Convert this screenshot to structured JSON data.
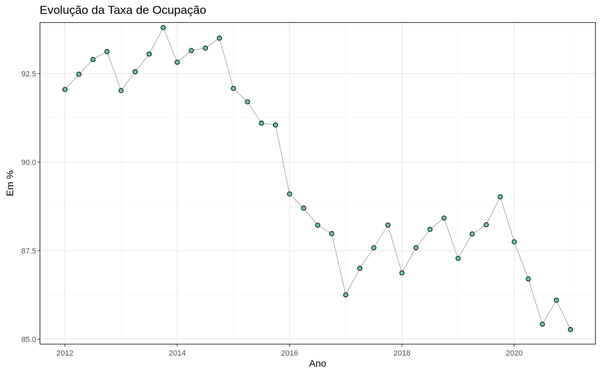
{
  "chart_data": {
    "type": "scatter",
    "title": "Evolução da Taxa de Ocupação",
    "xlabel": "Ano",
    "ylabel": "Em %",
    "xlim": [
      2011.55,
      2021.45
    ],
    "ylim": [
      84.85,
      93.95
    ],
    "x_ticks": [
      2012,
      2014,
      2016,
      2018,
      2020
    ],
    "x_tick_labels": [
      "2012",
      "2014",
      "2016",
      "2018",
      "2020"
    ],
    "y_ticks": [
      85.0,
      87.5,
      90.0,
      92.5
    ],
    "y_tick_labels": [
      "85.0",
      "87.5",
      "90.0",
      "92.5"
    ],
    "grid": true,
    "line_color": "#999999",
    "point_fill": "#66c2a5",
    "point_stroke": "#000000",
    "series": [
      {
        "x": [
          2012.0,
          2012.25,
          2012.5,
          2012.75,
          2013.0,
          2013.25,
          2013.5,
          2013.75,
          2014.0,
          2014.25,
          2014.5,
          2014.75,
          2015.0,
          2015.25,
          2015.5,
          2015.75,
          2016.0,
          2016.25,
          2016.5,
          2016.75,
          2017.0,
          2017.25,
          2017.5,
          2017.75,
          2018.0,
          2018.25,
          2018.5,
          2018.75,
          2019.0,
          2019.25,
          2019.5,
          2019.75,
          2020.0,
          2020.25,
          2020.5,
          2020.75,
          2021.0
        ],
        "y": [
          92.05,
          92.48,
          92.9,
          93.12,
          92.02,
          92.55,
          93.05,
          93.8,
          92.82,
          93.15,
          93.22,
          93.5,
          92.08,
          91.7,
          91.1,
          91.05,
          89.1,
          88.7,
          88.22,
          87.98,
          86.25,
          87.0,
          87.58,
          88.22,
          86.87,
          87.58,
          88.1,
          88.42,
          87.28,
          87.97,
          88.23,
          89.02,
          87.75,
          86.7,
          85.42,
          86.1,
          85.27
        ]
      }
    ]
  }
}
